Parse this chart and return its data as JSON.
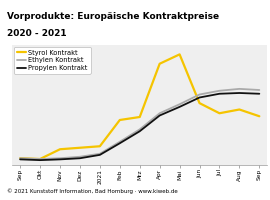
{
  "title_line1": "Vorprodukte: Europäische Kontraktpreise",
  "title_line2": "2020 - 2021",
  "title_bg_color": "#F5C400",
  "title_fontsize": 6.5,
  "plot_bg_color": "#EFEFEF",
  "footer_text": "© 2021 Kunststoff Information, Bad Homburg · www.kiweb.de",
  "footer_bg_color": "#AAAAAA",
  "footer_fontsize": 4.0,
  "x_labels": [
    "Sep",
    "Okt",
    "Nov",
    "Dez",
    "2021",
    "Feb",
    "Mrz",
    "Apr",
    "Mai",
    "Jun",
    "Jul",
    "Aug",
    "Sep"
  ],
  "series": [
    {
      "name": "Styrol Kontrakt",
      "color": "#F5C400",
      "linewidth": 1.6,
      "values": [
        18,
        16,
        42,
        46,
        50,
        120,
        128,
        270,
        295,
        165,
        138,
        148,
        130
      ]
    },
    {
      "name": "Ethylen Kontrakt",
      "color": "#AAAAAA",
      "linewidth": 1.3,
      "values": [
        18,
        16,
        18,
        22,
        30,
        62,
        95,
        138,
        162,
        188,
        198,
        203,
        200
      ]
    },
    {
      "name": "Propylen Kontrakt",
      "color": "#111111",
      "linewidth": 1.3,
      "values": [
        15,
        13,
        15,
        18,
        27,
        58,
        90,
        132,
        155,
        180,
        190,
        192,
        190
      ]
    }
  ],
  "ylim": [
    0,
    320
  ],
  "legend_fontsize": 4.8,
  "tick_fontsize": 4.2,
  "grid_color": "#FFFFFF",
  "grid_linewidth": 0.5
}
